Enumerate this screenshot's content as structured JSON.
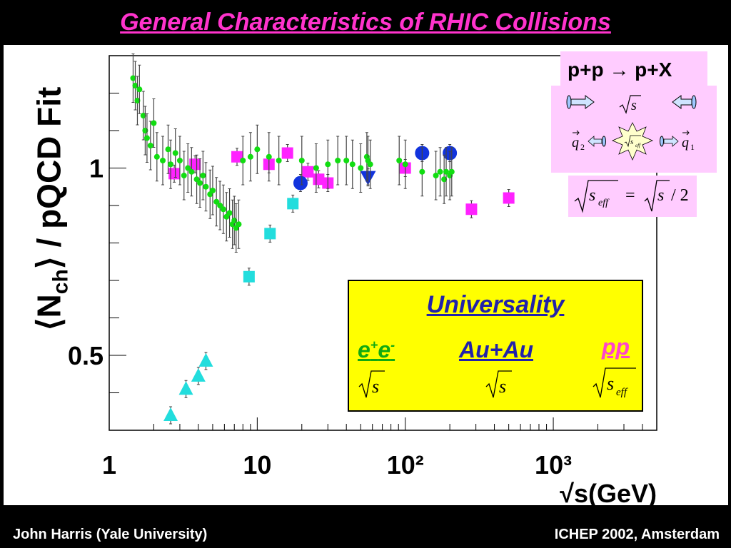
{
  "slide": {
    "title": "General Characteristics of RHIC Collisions",
    "footer_left": "John Harris (Yale University)",
    "footer_right": "ICHEP 2002, Amsterdam"
  },
  "diagram": {
    "process": "p+p → p+X",
    "s": "s",
    "s_eff": "s",
    "eff": "eff",
    "q2": "q",
    "q2_sub": "2",
    "q1": "q",
    "q1_sub": "1",
    "eq_rhs_div": "/ 2"
  },
  "universality": {
    "title": "Universality",
    "ee": "e+e-",
    "auau": "Au+Au",
    "pp": "pp",
    "ee_var": "s",
    "auau_var": "s",
    "pp_var": "s",
    "pp_var_sub": "eff"
  },
  "chart_data": {
    "type": "scatter",
    "title": "",
    "ylabel_main": "⟨N",
    "ylabel_sub": "ch",
    "ylabel_rest": "⟩ / pQCD Fit",
    "xlabel": "√s(GeV)",
    "xscale": "log",
    "xlim": [
      1,
      5000
    ],
    "ylim": [
      0.3,
      1.3
    ],
    "x_ticks": [
      "1",
      "10",
      "10²",
      "10³"
    ],
    "y_ticks": [
      "0.5",
      "1"
    ],
    "series": [
      {
        "color": "#ff22ff",
        "marker": "square",
        "points": [
          [
            2.75,
            0.985
          ],
          [
            3.8,
            1.01
          ],
          [
            7.3,
            1.03
          ],
          [
            12,
            1.01
          ],
          [
            16,
            1.04
          ],
          [
            22,
            0.99
          ],
          [
            26,
            0.97
          ],
          [
            30,
            0.96
          ],
          [
            100,
            1.0
          ],
          [
            280,
            0.89
          ],
          [
            500,
            0.92
          ]
        ]
      },
      {
        "color": "#22dddd",
        "marker": "square",
        "points": [
          [
            8.8,
            0.71
          ],
          [
            12.2,
            0.825
          ],
          [
            17.4,
            0.905
          ]
        ]
      },
      {
        "color": "#22dddd",
        "marker": "triangle-up",
        "points": [
          [
            2.6,
            0.34
          ],
          [
            3.3,
            0.41
          ],
          [
            4.0,
            0.445
          ],
          [
            4.5,
            0.485
          ]
        ]
      },
      {
        "color": "#1133dd",
        "marker": "circle",
        "points": [
          [
            19.6,
            0.96
          ],
          [
            130,
            1.04
          ],
          [
            200,
            1.04
          ]
        ]
      },
      {
        "color": "#1133dd",
        "marker": "triangle-down",
        "points": [
          [
            56,
            0.975
          ]
        ]
      },
      {
        "color": "#11dd11",
        "marker": "circle-small",
        "points": [
          [
            1.45,
            1.24
          ],
          [
            1.5,
            1.22
          ],
          [
            1.55,
            1.18
          ],
          [
            1.6,
            1.21
          ],
          [
            1.7,
            1.14
          ],
          [
            1.75,
            1.1
          ],
          [
            1.8,
            1.08
          ],
          [
            1.9,
            1.06
          ],
          [
            2.0,
            1.12
          ],
          [
            2.1,
            1.03
          ],
          [
            2.3,
            1.02
          ],
          [
            2.5,
            1.05
          ],
          [
            2.6,
            1.01
          ],
          [
            2.8,
            1.04
          ],
          [
            3.0,
            1.02
          ],
          [
            3.2,
            0.98
          ],
          [
            3.4,
            1.0
          ],
          [
            3.6,
            0.99
          ],
          [
            3.9,
            0.97
          ],
          [
            4.1,
            0.96
          ],
          [
            4.3,
            0.98
          ],
          [
            4.5,
            0.95
          ],
          [
            4.8,
            0.93
          ],
          [
            5.0,
            0.94
          ],
          [
            5.3,
            0.91
          ],
          [
            5.6,
            0.9
          ],
          [
            5.9,
            0.89
          ],
          [
            6.2,
            0.87
          ],
          [
            6.5,
            0.88
          ],
          [
            6.8,
            0.85
          ],
          [
            7.0,
            0.86
          ],
          [
            7.2,
            0.84
          ],
          [
            7.5,
            0.85
          ],
          [
            8.0,
            1.02
          ],
          [
            9.0,
            1.03
          ],
          [
            10,
            1.05
          ],
          [
            12,
            1.03
          ],
          [
            14,
            1.02
          ],
          [
            20,
            1.02
          ],
          [
            25,
            1.0
          ],
          [
            30,
            1.01
          ],
          [
            35,
            1.02
          ],
          [
            40,
            1.02
          ],
          [
            44,
            1.01
          ],
          [
            50,
            1.0
          ],
          [
            55,
            1.03
          ],
          [
            56,
            1.02
          ],
          [
            58,
            1.01
          ],
          [
            91,
            1.02
          ],
          [
            100,
            1.01
          ],
          [
            130,
            0.99
          ],
          [
            161,
            0.98
          ],
          [
            172,
            0.99
          ],
          [
            183,
            0.97
          ],
          [
            189,
            0.99
          ],
          [
            200,
            0.98
          ],
          [
            206,
            0.99
          ]
        ]
      }
    ]
  }
}
